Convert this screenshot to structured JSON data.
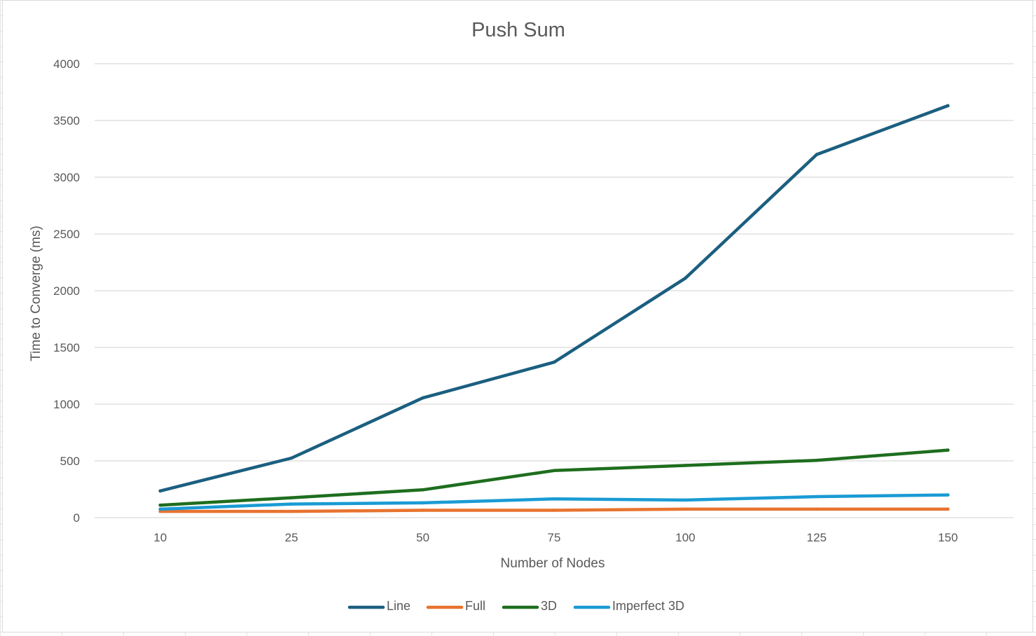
{
  "chart_data": {
    "type": "line",
    "title": "Push Sum",
    "xlabel": "Number of Nodes",
    "ylabel": "Time to Converge (ms)",
    "categories": [
      "10",
      "25",
      "50",
      "75",
      "100",
      "125",
      "150"
    ],
    "ylim": [
      0,
      4000
    ],
    "yticks": [
      0,
      500,
      1000,
      1500,
      2000,
      2500,
      3000,
      3500,
      4000
    ],
    "grid": true,
    "legend_position": "bottom",
    "series": [
      {
        "name": "Line",
        "color": "#1b5f80",
        "values": [
          235,
          525,
          1055,
          1370,
          2110,
          3200,
          3630
        ]
      },
      {
        "name": "Full",
        "color": "#e8732f",
        "values": [
          55,
          55,
          65,
          65,
          75,
          75,
          75
        ]
      },
      {
        "name": "3D",
        "color": "#1e6e1e",
        "values": [
          110,
          175,
          245,
          415,
          460,
          505,
          595
        ]
      },
      {
        "name": "Imperfect 3D",
        "color": "#1a9bd4",
        "values": [
          75,
          120,
          130,
          165,
          155,
          185,
          200
        ]
      }
    ]
  }
}
